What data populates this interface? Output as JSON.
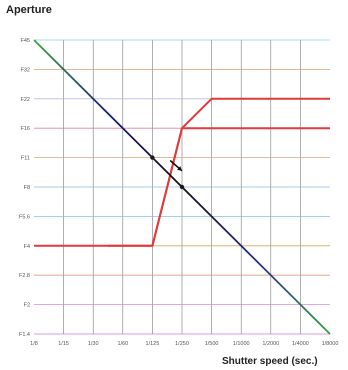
{
  "chart_data": {
    "type": "line",
    "title": "Aperture",
    "xlabel": "Shutter speed (sec.)",
    "ylabel": "",
    "x_ticks": [
      "1/8",
      "1/15",
      "1/30",
      "1/60",
      "1/125",
      "1/250",
      "1/500",
      "1/1000",
      "1/2000",
      "1/4000",
      "1/8000"
    ],
    "y_ticks": [
      "F45",
      "F32",
      "F22",
      "F16",
      "F11",
      "F8",
      "F5.6",
      "F4",
      "F2.8",
      "F2",
      "F1.4"
    ],
    "grid": true,
    "series": [
      {
        "color": "#e03a3a",
        "points": [
          [
            0,
            3
          ],
          [
            4,
            3
          ],
          [
            5,
            7
          ],
          [
            10,
            7
          ]
        ]
      },
      {
        "color": "#e03a3a",
        "points": [
          [
            2.5,
            3
          ],
          [
            4,
            3
          ],
          [
            5,
            7
          ],
          [
            6,
            8
          ],
          [
            10,
            8
          ]
        ]
      },
      {
        "color": "gradient",
        "points": [
          [
            0,
            10
          ],
          [
            10,
            0
          ]
        ]
      }
    ],
    "markers": [
      {
        "x": 4.0,
        "y": 6.0
      },
      {
        "x": 5.0,
        "y": 5.0
      }
    ],
    "arrow": {
      "x1": 4.6,
      "y1": 5.9,
      "x2": 5.0,
      "y2": 5.55
    }
  }
}
